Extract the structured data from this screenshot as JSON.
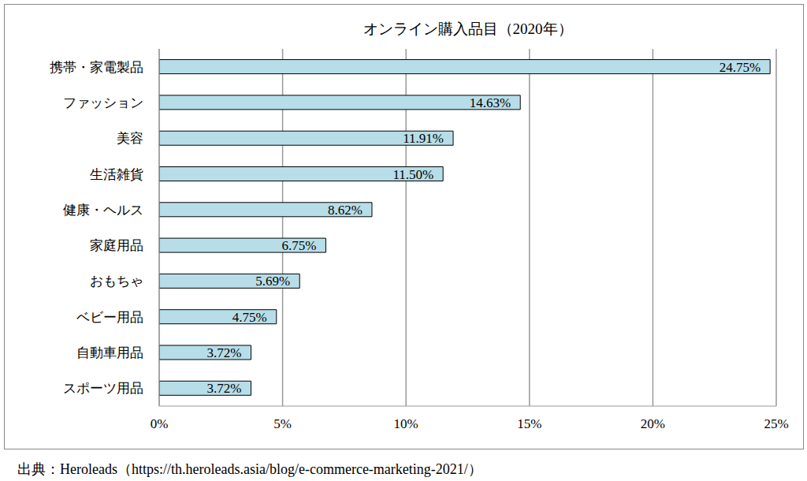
{
  "chart_data": {
    "type": "bar",
    "title": "オンライン購入品目（2020年）",
    "categories": [
      "携帯・家電製品",
      "ファッション",
      "美容",
      "生活雑貨",
      "健康・ヘルス",
      "家庭用品",
      "おもちゃ",
      "ベビー用品",
      "自動車用品",
      "スポーツ用品"
    ],
    "values": [
      24.75,
      14.63,
      11.91,
      11.5,
      8.62,
      6.75,
      5.69,
      4.75,
      3.72,
      3.72
    ],
    "value_labels": [
      "24.75%",
      "14.63%",
      "11.91%",
      "11.50%",
      "8.62%",
      "6.75%",
      "5.69%",
      "4.75%",
      "3.72%",
      "3.72%"
    ],
    "color": "#b7dde8",
    "orientation": "horizontal",
    "data_labels": true,
    "grid": true,
    "xlim": [
      0,
      25
    ],
    "xticks": [
      {
        "value": 0,
        "label": "0%"
      },
      {
        "value": 5,
        "label": "5%"
      },
      {
        "value": 10,
        "label": "10%"
      },
      {
        "value": 15,
        "label": "15%"
      },
      {
        "value": 20,
        "label": "20%"
      },
      {
        "value": 25,
        "label": "25%"
      }
    ],
    "source": "出典：Heroleads（https://th.heroleads.asia/blog/e-commerce-marketing-2021/）"
  }
}
